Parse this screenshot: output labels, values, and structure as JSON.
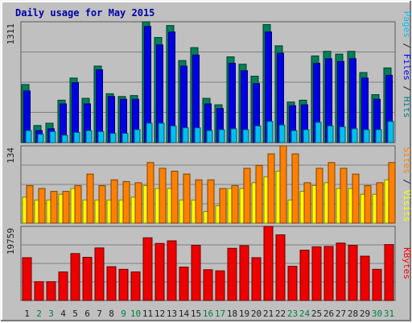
{
  "title": "Daily usage for May 2015",
  "colors": {
    "background": "#C0C0C0",
    "panel": "#C0C0C0",
    "grid": "#808080",
    "title": "#0000AA",
    "label_dark": "#202020",
    "label_weekend": "#008040"
  },
  "chart_data": [
    {
      "type": "bar",
      "title": "Daily usage for May 2015",
      "categories": [
        "1",
        "2",
        "3",
        "4",
        "5",
        "6",
        "7",
        "8",
        "9",
        "10",
        "11",
        "12",
        "13",
        "14",
        "15",
        "16",
        "17",
        "18",
        "19",
        "20",
        "21",
        "22",
        "23",
        "24",
        "25",
        "26",
        "27",
        "28",
        "29",
        "30",
        "31"
      ],
      "weekend_days": [
        "2",
        "3",
        "9",
        "10",
        "16",
        "17",
        "23",
        "24",
        "30",
        "31"
      ],
      "axis_max_label": "1311",
      "ylim": [
        0,
        1311
      ],
      "legend": [
        "Pages",
        "Files",
        "Hits"
      ],
      "legend_colors": [
        "#00C0F0",
        "#0000FF",
        "#008080"
      ],
      "series": [
        {
          "name": "Hits",
          "color": "#00805A",
          "values": [
            630,
            185,
            210,
            460,
            700,
            480,
            830,
            530,
            500,
            510,
            1311,
            1140,
            1270,
            890,
            1030,
            480,
            410,
            930,
            850,
            720,
            1280,
            1050,
            440,
            460,
            940,
            990,
            960,
            990,
            760,
            520,
            810
          ]
        },
        {
          "name": "Files",
          "color": "#0000E6",
          "values": [
            560,
            130,
            150,
            420,
            650,
            420,
            790,
            500,
            470,
            470,
            1260,
            1060,
            1200,
            830,
            950,
            420,
            370,
            860,
            780,
            640,
            1200,
            970,
            400,
            410,
            860,
            910,
            880,
            910,
            700,
            470,
            730
          ]
        },
        {
          "name": "Pages",
          "color": "#00C0F0",
          "values": [
            130,
            90,
            120,
            80,
            110,
            130,
            120,
            100,
            100,
            140,
            210,
            210,
            180,
            160,
            160,
            130,
            140,
            150,
            140,
            180,
            230,
            190,
            130,
            140,
            220,
            180,
            170,
            150,
            140,
            140,
            230
          ]
        }
      ]
    },
    {
      "type": "bar",
      "categories": [
        "1",
        "2",
        "3",
        "4",
        "5",
        "6",
        "7",
        "8",
        "9",
        "10",
        "11",
        "12",
        "13",
        "14",
        "15",
        "16",
        "17",
        "18",
        "19",
        "20",
        "21",
        "22",
        "23",
        "24",
        "25",
        "26",
        "27",
        "28",
        "29",
        "30",
        "31"
      ],
      "axis_max_label": "134",
      "ylim": [
        0,
        134
      ],
      "legend": [
        "Sites",
        "Visits"
      ],
      "legend_colors": [
        "#FF8000",
        "#FFFF00"
      ],
      "series": [
        {
          "name": "Visits",
          "color": "#FFFF00",
          "values": [
            45,
            40,
            40,
            50,
            60,
            40,
            40,
            40,
            40,
            45,
            65,
            60,
            60,
            40,
            40,
            20,
            30,
            60,
            60,
            70,
            80,
            90,
            40,
            55,
            65,
            70,
            60,
            60,
            50,
            50,
            75
          ]
        },
        {
          "name": "Sites",
          "color": "#FF8000",
          "values": [
            65,
            60,
            55,
            55,
            65,
            85,
            65,
            75,
            72,
            70,
            105,
            95,
            90,
            85,
            75,
            75,
            60,
            65,
            95,
            100,
            120,
            134,
            120,
            70,
            95,
            105,
            95,
            85,
            65,
            70,
            105
          ]
        }
      ]
    },
    {
      "type": "bar",
      "categories": [
        "1",
        "2",
        "3",
        "4",
        "5",
        "6",
        "7",
        "8",
        "9",
        "10",
        "11",
        "12",
        "13",
        "14",
        "15",
        "16",
        "17",
        "18",
        "19",
        "20",
        "21",
        "22",
        "23",
        "24",
        "25",
        "26",
        "27",
        "28",
        "29",
        "30",
        "31"
      ],
      "axis_max_label": "19759",
      "ylim": [
        0,
        19759
      ],
      "legend": [
        "KBytes"
      ],
      "legend_colors": [
        "#FF0000"
      ],
      "series": [
        {
          "name": "KBytes",
          "color": "#EE0000",
          "values": [
            11400,
            5000,
            5000,
            7600,
            12500,
            11500,
            14000,
            9000,
            8300,
            7600,
            16700,
            15200,
            15900,
            8900,
            14700,
            8200,
            7900,
            13900,
            14600,
            11400,
            19759,
            17500,
            9100,
            13400,
            14300,
            14400,
            15300,
            14700,
            11800,
            8300,
            14900
          ]
        }
      ]
    }
  ]
}
